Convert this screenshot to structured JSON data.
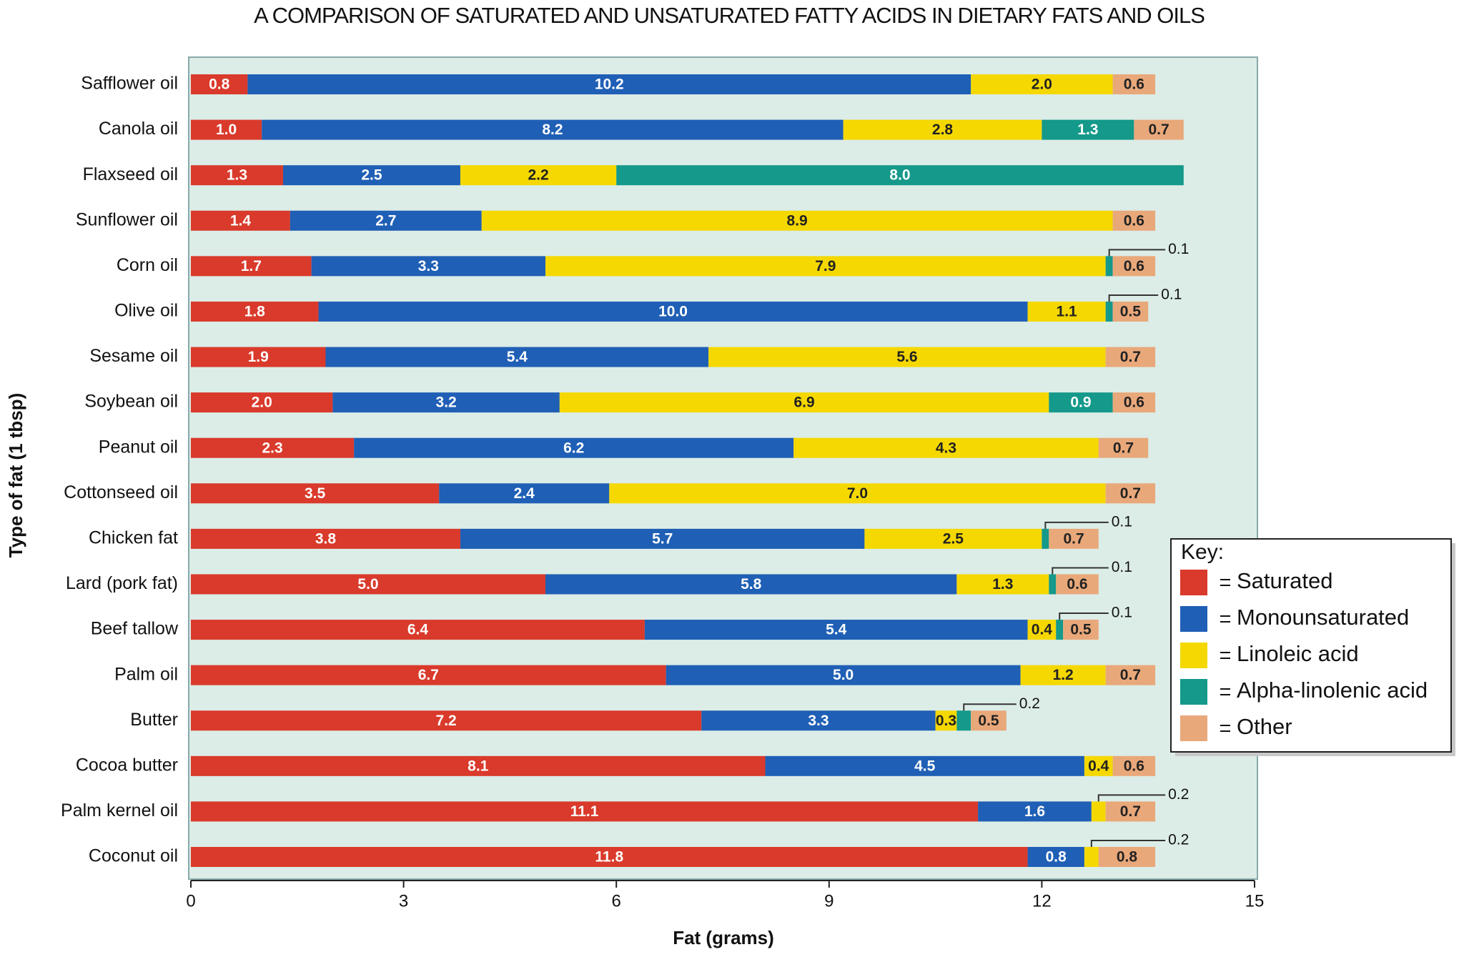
{
  "chart_data": {
    "type": "stacked-bar-horizontal",
    "title": "A COMPARISON OF SATURATED AND UNSATURATED FATTY ACIDS IN DIETARY FATS AND OILS",
    "x_label": "Fat (grams)",
    "y_label": "Type of fat (1 tbsp)",
    "legend_title": "Key:",
    "legend_position": "right",
    "grid": false,
    "xlim": [
      0,
      15
    ],
    "xticks": [
      0,
      3,
      6,
      9,
      12,
      15
    ],
    "categories": [
      "Safflower oil",
      "Canola oil",
      "Flaxseed oil",
      "Sunflower oil",
      "Corn oil",
      "Olive oil",
      "Sesame oil",
      "Soybean oil",
      "Peanut oil",
      "Cottonseed oil",
      "Chicken fat",
      "Lard (pork fat)",
      "Beef tallow",
      "Palm oil",
      "Butter",
      "Cocoa butter",
      "Palm kernel oil",
      "Coconut oil"
    ],
    "series": [
      {
        "name": "Saturated",
        "color": "#d93a2b",
        "values": [
          0.8,
          1.0,
          1.3,
          1.4,
          1.7,
          1.8,
          1.9,
          2.0,
          2.3,
          3.5,
          3.8,
          5.0,
          6.4,
          6.7,
          7.2,
          8.1,
          11.1,
          11.8
        ],
        "value_labels": [
          "0.8",
          "1.0",
          "1.3",
          "1.4",
          "1.7",
          "1.8",
          "1.9",
          "2.0",
          "2.3",
          "3.5",
          "3.8",
          "5.0",
          "6.4",
          "6.7",
          "7.2",
          "8.1",
          "11.1",
          "11.8"
        ]
      },
      {
        "name": "Monounsaturated",
        "color": "#1f5fb5",
        "values": [
          10.2,
          8.2,
          2.5,
          2.7,
          3.3,
          10.0,
          5.4,
          3.2,
          6.2,
          2.4,
          5.7,
          5.8,
          5.4,
          5.0,
          3.3,
          4.5,
          1.6,
          0.8
        ],
        "value_labels": [
          "10.2",
          "8.2",
          "2.5",
          "2.7",
          "3.3",
          "10.0",
          "5.4",
          "3.2",
          "6.2",
          "2.4",
          "5.7",
          "5.8",
          "5.4",
          "5.0",
          "3.3",
          "4.5",
          "1.6",
          "0.8"
        ]
      },
      {
        "name": "Linoleic acid",
        "color": "#f5d800",
        "values": [
          2.0,
          2.8,
          2.2,
          8.9,
          7.9,
          1.1,
          5.6,
          6.9,
          4.3,
          7.0,
          2.5,
          1.3,
          0.4,
          1.2,
          0.3,
          0.4,
          0.2,
          0.2
        ],
        "value_labels": [
          "2.0",
          "2.8",
          "2.2",
          "8.9",
          "7.9",
          "1.1",
          "5.6",
          "6.9",
          "4.3",
          "7.0",
          "2.5",
          "1.3",
          "0.4",
          "1.2",
          "0.3",
          "0.4",
          "0.2",
          "0.2"
        ]
      },
      {
        "name": "Alpha-linolenic acid",
        "color": "#14998a",
        "values": [
          null,
          1.3,
          8.0,
          null,
          0.1,
          0.1,
          null,
          0.9,
          null,
          null,
          0.1,
          0.1,
          0.1,
          null,
          0.2,
          null,
          null,
          null
        ],
        "value_labels": [
          null,
          "1.3",
          "8.0",
          null,
          "0.1",
          "0.1",
          null,
          "0.9",
          null,
          null,
          "0.1",
          "0.1",
          "0.1",
          null,
          "0.2",
          null,
          null,
          null
        ]
      },
      {
        "name": "Other",
        "color": "#e9a87a",
        "values": [
          0.6,
          0.7,
          null,
          0.6,
          0.6,
          0.5,
          0.7,
          0.6,
          0.7,
          0.7,
          0.7,
          0.6,
          0.5,
          0.7,
          0.5,
          0.6,
          0.7,
          0.8
        ],
        "value_labels": [
          "0.6",
          "0.7",
          null,
          "0.6",
          "0.6",
          "0.5",
          "0.7",
          "0.6",
          "0.7",
          "0.7",
          "0.7",
          "0.6",
          "0.5",
          "0.7",
          "0.5",
          "0.6",
          "0.7",
          "0.8"
        ]
      }
    ]
  }
}
